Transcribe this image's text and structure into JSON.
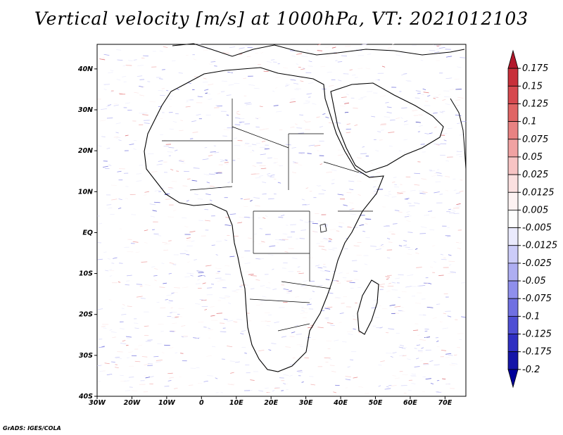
{
  "title": "Vertical velocity [m/s] at 1000hPa, VT: 2021012103",
  "footer": "GrADS: IGES/COLA",
  "map": {
    "region": "Africa",
    "lon_range": [
      -30,
      76
    ],
    "lat_range": [
      -40,
      46
    ],
    "lon_ticks": [
      "30W",
      "20W",
      "10W",
      "0",
      "10E",
      "20E",
      "30E",
      "40E",
      "50E",
      "60E",
      "70E"
    ],
    "lat_ticks": [
      "40N",
      "30N",
      "20N",
      "10N",
      "EQ",
      "10S",
      "20S",
      "30S",
      "40S"
    ]
  },
  "colorbar": {
    "labels": [
      "0.175",
      "0.15",
      "0.125",
      "0.1",
      "0.075",
      "0.05",
      "0.025",
      "0.0125",
      "0.005",
      "-0.005",
      "-0.0125",
      "-0.025",
      "-0.05",
      "-0.075",
      "-0.1",
      "-0.125",
      "-0.175",
      "-0.2"
    ],
    "colors": [
      "#b2182b",
      "#c8303a",
      "#d6494f",
      "#e06565",
      "#e88282",
      "#f0a2a2",
      "#f7c4c4",
      "#fbe0e0",
      "#fdf2f2",
      "#ffffff",
      "#eaeafd",
      "#ccccf8",
      "#aeaef2",
      "#8f8fec",
      "#7070e2",
      "#4f4fd4",
      "#2f2fc2",
      "#1515a8",
      "#00009a"
    ]
  }
}
